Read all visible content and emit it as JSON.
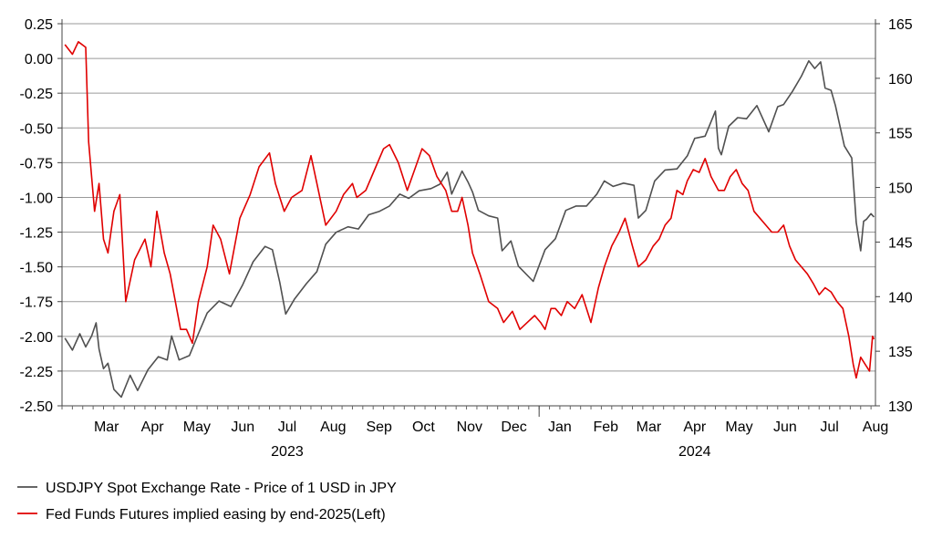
{
  "chart_data": {
    "type": "line",
    "title": "",
    "x_type": "date",
    "xlim": [
      "2023-02-13",
      "2024-08-15"
    ],
    "months": [
      {
        "label": "Mar",
        "date": "2023-03-15"
      },
      {
        "label": "Apr",
        "date": "2023-04-15"
      },
      {
        "label": "May",
        "date": "2023-05-15"
      },
      {
        "label": "Jun",
        "date": "2023-06-15"
      },
      {
        "label": "Jul",
        "date": "2023-07-15"
      },
      {
        "label": "Aug",
        "date": "2023-08-15"
      },
      {
        "label": "Sep",
        "date": "2023-09-15"
      },
      {
        "label": "Oct",
        "date": "2023-10-15"
      },
      {
        "label": "Nov",
        "date": "2023-11-15"
      },
      {
        "label": "Dec",
        "date": "2023-12-15"
      },
      {
        "label": "Jan",
        "date": "2024-01-15"
      },
      {
        "label": "Feb",
        "date": "2024-02-15"
      },
      {
        "label": "Mar",
        "date": "2024-03-15"
      },
      {
        "label": "Apr",
        "date": "2024-04-15"
      },
      {
        "label": "May",
        "date": "2024-05-15"
      },
      {
        "label": "Jun",
        "date": "2024-06-15"
      },
      {
        "label": "Jul",
        "date": "2024-07-15"
      },
      {
        "label": "Aug",
        "date": "2024-08-15"
      }
    ],
    "years": [
      {
        "label": "2023",
        "date": "2023-07-15"
      },
      {
        "label": "2024",
        "date": "2024-04-15"
      }
    ],
    "y_left": {
      "ylim": [
        -2.5,
        0.25
      ],
      "ticks": [
        "0.25",
        "0.00",
        "-0.25",
        "-0.50",
        "-0.75",
        "-1.00",
        "-1.25",
        "-1.50",
        "-1.75",
        "-2.00",
        "-2.25",
        "-2.50"
      ]
    },
    "y_right": {
      "ylim": [
        130,
        165
      ],
      "ticks": [
        "165",
        "160",
        "155",
        "150",
        "145",
        "140",
        "135",
        "130"
      ]
    },
    "grid": true,
    "legend_position": "bottom-left",
    "series": [
      {
        "name": "USDJPY Spot Exchange Rate - Price of 1 USD in JPY",
        "axis": "right",
        "color": "#505050",
        "points": [
          [
            "2023-02-15",
            136.2
          ],
          [
            "2023-02-20",
            135.1
          ],
          [
            "2023-02-25",
            136.6
          ],
          [
            "2023-03-01",
            135.4
          ],
          [
            "2023-03-05",
            136.4
          ],
          [
            "2023-03-08",
            137.6
          ],
          [
            "2023-03-10",
            135.2
          ],
          [
            "2023-03-13",
            133.4
          ],
          [
            "2023-03-16",
            133.9
          ],
          [
            "2023-03-20",
            131.5
          ],
          [
            "2023-03-25",
            130.8
          ],
          [
            "2023-03-31",
            132.8
          ],
          [
            "2023-04-05",
            131.4
          ],
          [
            "2023-04-12",
            133.3
          ],
          [
            "2023-04-19",
            134.5
          ],
          [
            "2023-04-25",
            134.2
          ],
          [
            "2023-04-28",
            136.4
          ],
          [
            "2023-05-03",
            134.2
          ],
          [
            "2023-05-10",
            134.6
          ],
          [
            "2023-05-16",
            136.6
          ],
          [
            "2023-05-22",
            138.5
          ],
          [
            "2023-05-30",
            139.6
          ],
          [
            "2023-06-07",
            139.1
          ],
          [
            "2023-06-15",
            141.1
          ],
          [
            "2023-06-22",
            143.2
          ],
          [
            "2023-06-30",
            144.6
          ],
          [
            "2023-07-05",
            144.3
          ],
          [
            "2023-07-10",
            141.3
          ],
          [
            "2023-07-14",
            138.4
          ],
          [
            "2023-07-20",
            139.8
          ],
          [
            "2023-07-28",
            141.2
          ],
          [
            "2023-08-04",
            142.3
          ],
          [
            "2023-08-10",
            144.8
          ],
          [
            "2023-08-17",
            145.9
          ],
          [
            "2023-08-25",
            146.4
          ],
          [
            "2023-09-01",
            146.2
          ],
          [
            "2023-09-08",
            147.5
          ],
          [
            "2023-09-15",
            147.8
          ],
          [
            "2023-09-22",
            148.3
          ],
          [
            "2023-09-29",
            149.4
          ],
          [
            "2023-10-05",
            149.0
          ],
          [
            "2023-10-12",
            149.7
          ],
          [
            "2023-10-20",
            149.9
          ],
          [
            "2023-10-26",
            150.3
          ],
          [
            "2023-10-31",
            151.4
          ],
          [
            "2023-11-03",
            149.4
          ],
          [
            "2023-11-10",
            151.5
          ],
          [
            "2023-11-14",
            150.5
          ],
          [
            "2023-11-17",
            149.6
          ],
          [
            "2023-11-21",
            147.9
          ],
          [
            "2023-11-28",
            147.4
          ],
          [
            "2023-12-04",
            147.2
          ],
          [
            "2023-12-07",
            144.2
          ],
          [
            "2023-12-13",
            145.1
          ],
          [
            "2023-12-18",
            142.8
          ],
          [
            "2023-12-28",
            141.4
          ],
          [
            "2024-01-05",
            144.3
          ],
          [
            "2024-01-12",
            145.3
          ],
          [
            "2024-01-19",
            147.9
          ],
          [
            "2024-01-26",
            148.3
          ],
          [
            "2024-02-02",
            148.3
          ],
          [
            "2024-02-09",
            149.4
          ],
          [
            "2024-02-14",
            150.6
          ],
          [
            "2024-02-20",
            150.1
          ],
          [
            "2024-02-27",
            150.4
          ],
          [
            "2024-03-05",
            150.2
          ],
          [
            "2024-03-08",
            147.2
          ],
          [
            "2024-03-13",
            147.9
          ],
          [
            "2024-03-19",
            150.6
          ],
          [
            "2024-03-26",
            151.6
          ],
          [
            "2024-04-03",
            151.7
          ],
          [
            "2024-04-10",
            152.9
          ],
          [
            "2024-04-15",
            154.5
          ],
          [
            "2024-04-22",
            154.7
          ],
          [
            "2024-04-29",
            157.0
          ],
          [
            "2024-05-01",
            153.6
          ],
          [
            "2024-05-03",
            153.0
          ],
          [
            "2024-05-08",
            155.6
          ],
          [
            "2024-05-14",
            156.4
          ],
          [
            "2024-05-20",
            156.3
          ],
          [
            "2024-05-27",
            157.5
          ],
          [
            "2024-06-04",
            155.1
          ],
          [
            "2024-06-10",
            157.4
          ],
          [
            "2024-06-14",
            157.6
          ],
          [
            "2024-06-20",
            158.8
          ],
          [
            "2024-06-26",
            160.2
          ],
          [
            "2024-07-01",
            161.6
          ],
          [
            "2024-07-05",
            160.9
          ],
          [
            "2024-07-09",
            161.5
          ],
          [
            "2024-07-12",
            159.1
          ],
          [
            "2024-07-16",
            158.9
          ],
          [
            "2024-07-19",
            157.5
          ],
          [
            "2024-07-25",
            153.8
          ],
          [
            "2024-07-30",
            152.7
          ],
          [
            "2024-08-02",
            146.8
          ],
          [
            "2024-08-05",
            144.2
          ],
          [
            "2024-08-07",
            146.9
          ],
          [
            "2024-08-09",
            147.1
          ],
          [
            "2024-08-12",
            147.6
          ],
          [
            "2024-08-14",
            147.3
          ]
        ]
      },
      {
        "name": "Fed Funds Futures implied easing by end-2025(Left)",
        "axis": "left",
        "color": "#e00000",
        "points": [
          [
            "2023-02-15",
            0.1
          ],
          [
            "2023-02-20",
            0.03
          ],
          [
            "2023-02-24",
            0.12
          ],
          [
            "2023-03-01",
            0.08
          ],
          [
            "2023-03-03",
            -0.6
          ],
          [
            "2023-03-07",
            -1.1
          ],
          [
            "2023-03-10",
            -0.9
          ],
          [
            "2023-03-13",
            -1.3
          ],
          [
            "2023-03-16",
            -1.4
          ],
          [
            "2023-03-20",
            -1.1
          ],
          [
            "2023-03-24",
            -0.98
          ],
          [
            "2023-03-28",
            -1.75
          ],
          [
            "2023-04-03",
            -1.45
          ],
          [
            "2023-04-10",
            -1.3
          ],
          [
            "2023-04-14",
            -1.5
          ],
          [
            "2023-04-18",
            -1.1
          ],
          [
            "2023-04-23",
            -1.4
          ],
          [
            "2023-04-27",
            -1.55
          ],
          [
            "2023-05-04",
            -1.95
          ],
          [
            "2023-05-08",
            -1.95
          ],
          [
            "2023-05-12",
            -2.05
          ],
          [
            "2023-05-16",
            -1.75
          ],
          [
            "2023-05-22",
            -1.5
          ],
          [
            "2023-05-26",
            -1.2
          ],
          [
            "2023-05-31",
            -1.3
          ],
          [
            "2023-06-06",
            -1.55
          ],
          [
            "2023-06-13",
            -1.15
          ],
          [
            "2023-06-20",
            -0.98
          ],
          [
            "2023-06-26",
            -0.78
          ],
          [
            "2023-07-03",
            -0.68
          ],
          [
            "2023-07-07",
            -0.9
          ],
          [
            "2023-07-13",
            -1.1
          ],
          [
            "2023-07-18",
            -1.0
          ],
          [
            "2023-07-25",
            -0.95
          ],
          [
            "2023-07-31",
            -0.7
          ],
          [
            "2023-08-04",
            -0.9
          ],
          [
            "2023-08-10",
            -1.2
          ],
          [
            "2023-08-17",
            -1.1
          ],
          [
            "2023-08-22",
            -0.98
          ],
          [
            "2023-08-28",
            -0.9
          ],
          [
            "2023-08-31",
            -1.0
          ],
          [
            "2023-09-06",
            -0.95
          ],
          [
            "2023-09-12",
            -0.8
          ],
          [
            "2023-09-18",
            -0.65
          ],
          [
            "2023-09-22",
            -0.62
          ],
          [
            "2023-09-28",
            -0.75
          ],
          [
            "2023-10-04",
            -0.95
          ],
          [
            "2023-10-09",
            -0.8
          ],
          [
            "2023-10-14",
            -0.65
          ],
          [
            "2023-10-19",
            -0.7
          ],
          [
            "2023-10-24",
            -0.85
          ],
          [
            "2023-10-30",
            -0.95
          ],
          [
            "2023-11-03",
            -1.1
          ],
          [
            "2023-11-07",
            -1.1
          ],
          [
            "2023-11-10",
            -1.0
          ],
          [
            "2023-11-14",
            -1.2
          ],
          [
            "2023-11-17",
            -1.4
          ],
          [
            "2023-11-22",
            -1.55
          ],
          [
            "2023-11-28",
            -1.75
          ],
          [
            "2023-12-04",
            -1.8
          ],
          [
            "2023-12-08",
            -1.9
          ],
          [
            "2023-12-14",
            -1.82
          ],
          [
            "2023-12-19",
            -1.95
          ],
          [
            "2023-12-24",
            -1.9
          ],
          [
            "2023-12-29",
            -1.85
          ],
          [
            "2024-01-02",
            -1.9
          ],
          [
            "2024-01-05",
            -1.95
          ],
          [
            "2024-01-09",
            -1.8
          ],
          [
            "2024-01-12",
            -1.8
          ],
          [
            "2024-01-16",
            -1.85
          ],
          [
            "2024-01-20",
            -1.75
          ],
          [
            "2024-01-25",
            -1.8
          ],
          [
            "2024-01-30",
            -1.7
          ],
          [
            "2024-02-05",
            -1.9
          ],
          [
            "2024-02-10",
            -1.65
          ],
          [
            "2024-02-14",
            -1.5
          ],
          [
            "2024-02-19",
            -1.35
          ],
          [
            "2024-02-24",
            -1.25
          ],
          [
            "2024-02-28",
            -1.15
          ],
          [
            "2024-03-04",
            -1.35
          ],
          [
            "2024-03-08",
            -1.5
          ],
          [
            "2024-03-13",
            -1.45
          ],
          [
            "2024-03-18",
            -1.35
          ],
          [
            "2024-03-22",
            -1.3
          ],
          [
            "2024-03-26",
            -1.2
          ],
          [
            "2024-03-30",
            -1.15
          ],
          [
            "2024-04-03",
            -0.95
          ],
          [
            "2024-04-07",
            -0.98
          ],
          [
            "2024-04-10",
            -0.88
          ],
          [
            "2024-04-14",
            -0.8
          ],
          [
            "2024-04-18",
            -0.82
          ],
          [
            "2024-04-22",
            -0.72
          ],
          [
            "2024-04-26",
            -0.85
          ],
          [
            "2024-05-01",
            -0.95
          ],
          [
            "2024-05-05",
            -0.95
          ],
          [
            "2024-05-09",
            -0.85
          ],
          [
            "2024-05-13",
            -0.8
          ],
          [
            "2024-05-17",
            -0.9
          ],
          [
            "2024-05-21",
            -0.95
          ],
          [
            "2024-05-25",
            -1.1
          ],
          [
            "2024-05-29",
            -1.15
          ],
          [
            "2024-06-02",
            -1.2
          ],
          [
            "2024-06-06",
            -1.25
          ],
          [
            "2024-06-10",
            -1.25
          ],
          [
            "2024-06-14",
            -1.2
          ],
          [
            "2024-06-18",
            -1.35
          ],
          [
            "2024-06-22",
            -1.45
          ],
          [
            "2024-06-26",
            -1.5
          ],
          [
            "2024-06-30",
            -1.55
          ],
          [
            "2024-07-04",
            -1.62
          ],
          [
            "2024-07-08",
            -1.7
          ],
          [
            "2024-07-12",
            -1.65
          ],
          [
            "2024-07-16",
            -1.68
          ],
          [
            "2024-07-20",
            -1.75
          ],
          [
            "2024-07-24",
            -1.8
          ],
          [
            "2024-07-28",
            -2.0
          ],
          [
            "2024-07-31",
            -2.2
          ],
          [
            "2024-08-02",
            -2.3
          ],
          [
            "2024-08-05",
            -2.15
          ],
          [
            "2024-08-08",
            -2.2
          ],
          [
            "2024-08-11",
            -2.25
          ],
          [
            "2024-08-13",
            -2.0
          ],
          [
            "2024-08-14",
            -2.02
          ]
        ]
      }
    ]
  }
}
